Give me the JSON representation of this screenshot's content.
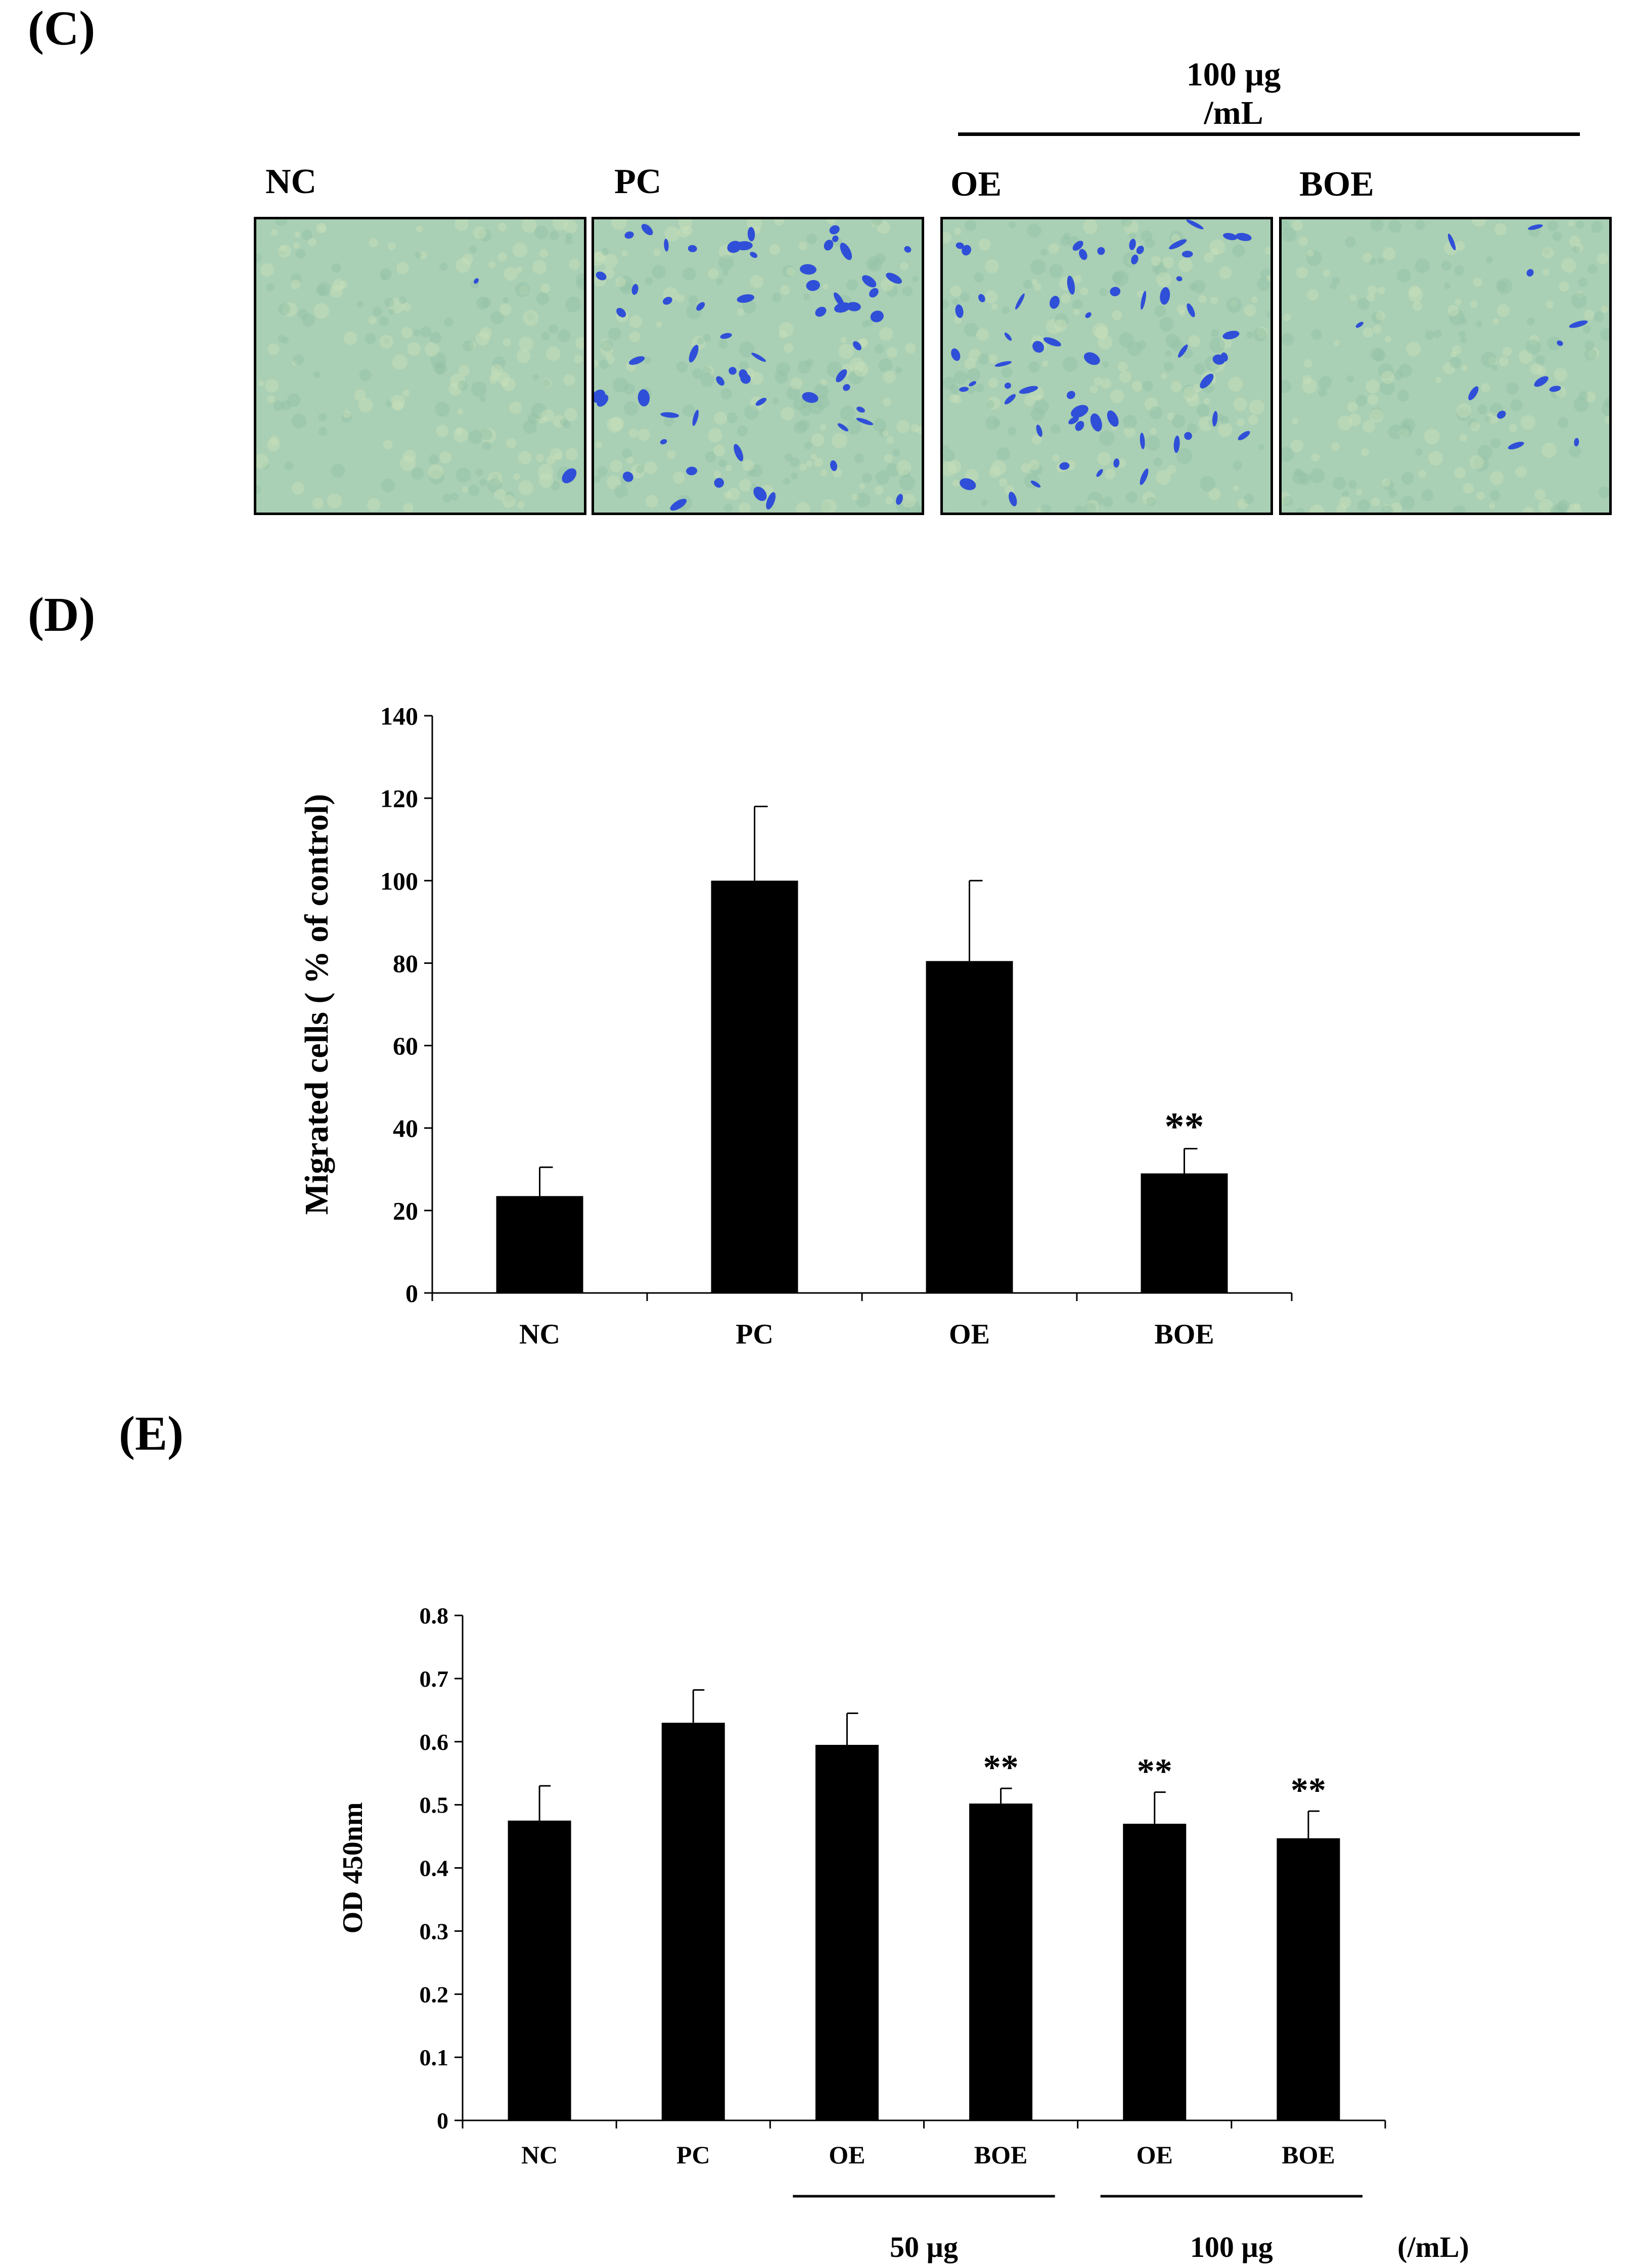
{
  "panel_c": {
    "label": "(C)",
    "concentration_label": "100 µg /mL",
    "images": [
      {
        "label": "NC",
        "stain_density": "very low"
      },
      {
        "label": "PC",
        "stain_density": "high"
      },
      {
        "label": "OE",
        "stain_density": "high"
      },
      {
        "label": "BOE",
        "stain_density": "low"
      }
    ],
    "colors": {
      "background": "#a9cfb4",
      "stain": "#2f4fd8"
    }
  },
  "panel_d": {
    "label": "(D)"
  },
  "panel_e": {
    "label": "(E)",
    "group_labels": [
      "50 µg",
      "100 µg",
      "(/mL)"
    ]
  },
  "chart_data": [
    {
      "type": "bar",
      "categories": [
        "NC",
        "PC",
        "OE",
        "BOE"
      ],
      "values": [
        23.5,
        100,
        80.5,
        29
      ],
      "error": [
        7,
        18,
        19.5,
        6
      ],
      "annotations": [
        "",
        "",
        "",
        "**"
      ],
      "ylabel": "Migrated cells ( % of control)",
      "ylim": [
        0,
        140
      ],
      "yticks": [
        "0",
        "20",
        "40",
        "60",
        "80",
        "100",
        "120",
        "140"
      ],
      "bar_color": "#000000",
      "grid": false
    },
    {
      "type": "bar",
      "categories": [
        "NC",
        "PC",
        "OE",
        "BOE",
        "OE",
        "BOE"
      ],
      "values": [
        0.475,
        0.63,
        0.595,
        0.502,
        0.47,
        0.447
      ],
      "error": [
        0.055,
        0.052,
        0.05,
        0.024,
        0.05,
        0.043
      ],
      "annotations": [
        "",
        "",
        "",
        "**",
        "**",
        "**"
      ],
      "ylabel": "OD 450nm",
      "ylim": [
        0,
        0.8
      ],
      "yticks": [
        "0",
        "0.1",
        "0.2",
        "0.3",
        "0.4",
        "0.5",
        "0.6",
        "0.7",
        "0.8"
      ],
      "bar_color": "#000000",
      "grid": false
    }
  ]
}
